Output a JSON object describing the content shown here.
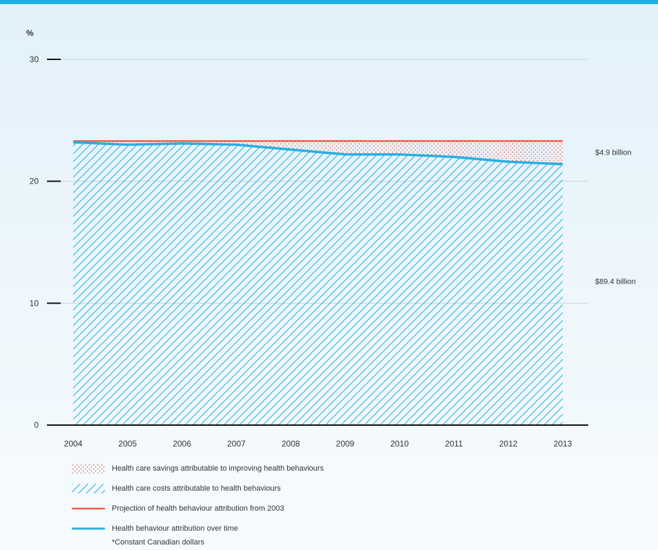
{
  "chart_data": {
    "type": "area",
    "y_unit": "%",
    "ylim": [
      0,
      30
    ],
    "yticks": [
      0,
      10,
      20,
      30
    ],
    "grid": true,
    "x": [
      "2004",
      "2005",
      "2006",
      "2007",
      "2008",
      "2009",
      "2010",
      "2011",
      "2012",
      "2013"
    ],
    "series": [
      {
        "name": "Health behaviour attribution over time",
        "kind": "line",
        "values": [
          23.2,
          23.0,
          23.1,
          23.0,
          22.6,
          22.2,
          22.2,
          22.0,
          21.6,
          21.4
        ]
      },
      {
        "name": "Projection of health behaviour attribution from 2003",
        "kind": "line",
        "values": [
          23.3,
          23.3,
          23.3,
          23.3,
          23.3,
          23.3,
          23.3,
          23.3,
          23.3,
          23.3
        ]
      },
      {
        "name": "Health care costs attributable to health behaviours",
        "kind": "area-hatched",
        "between": "0 and attribution over time"
      },
      {
        "name": "Health care savings attributable to improving health behaviours",
        "kind": "area-dotted",
        "between": "attribution over time and projection"
      }
    ],
    "annotations": [
      {
        "text": "$4.9 billion",
        "at_value": 22.4
      },
      {
        "text": "$89.4 billion",
        "at_value": 11.8
      }
    ],
    "colors": {
      "attribution_line": "#2aaee0",
      "projection_line": "#ee5f4a",
      "hatch": "#3bb6e3",
      "dots": "#ee6a5c"
    }
  },
  "legend": [
    {
      "key": "savings",
      "label": "Health care savings attributable to improving health behaviours"
    },
    {
      "key": "costs",
      "label": "Health care costs attributable to health behaviours"
    },
    {
      "key": "projection",
      "label": "Projection of health behaviour attribution from 2003"
    },
    {
      "key": "attribution",
      "label": "Health behaviour attribution over time"
    }
  ],
  "footnote": "*Constant Canadian dollars"
}
